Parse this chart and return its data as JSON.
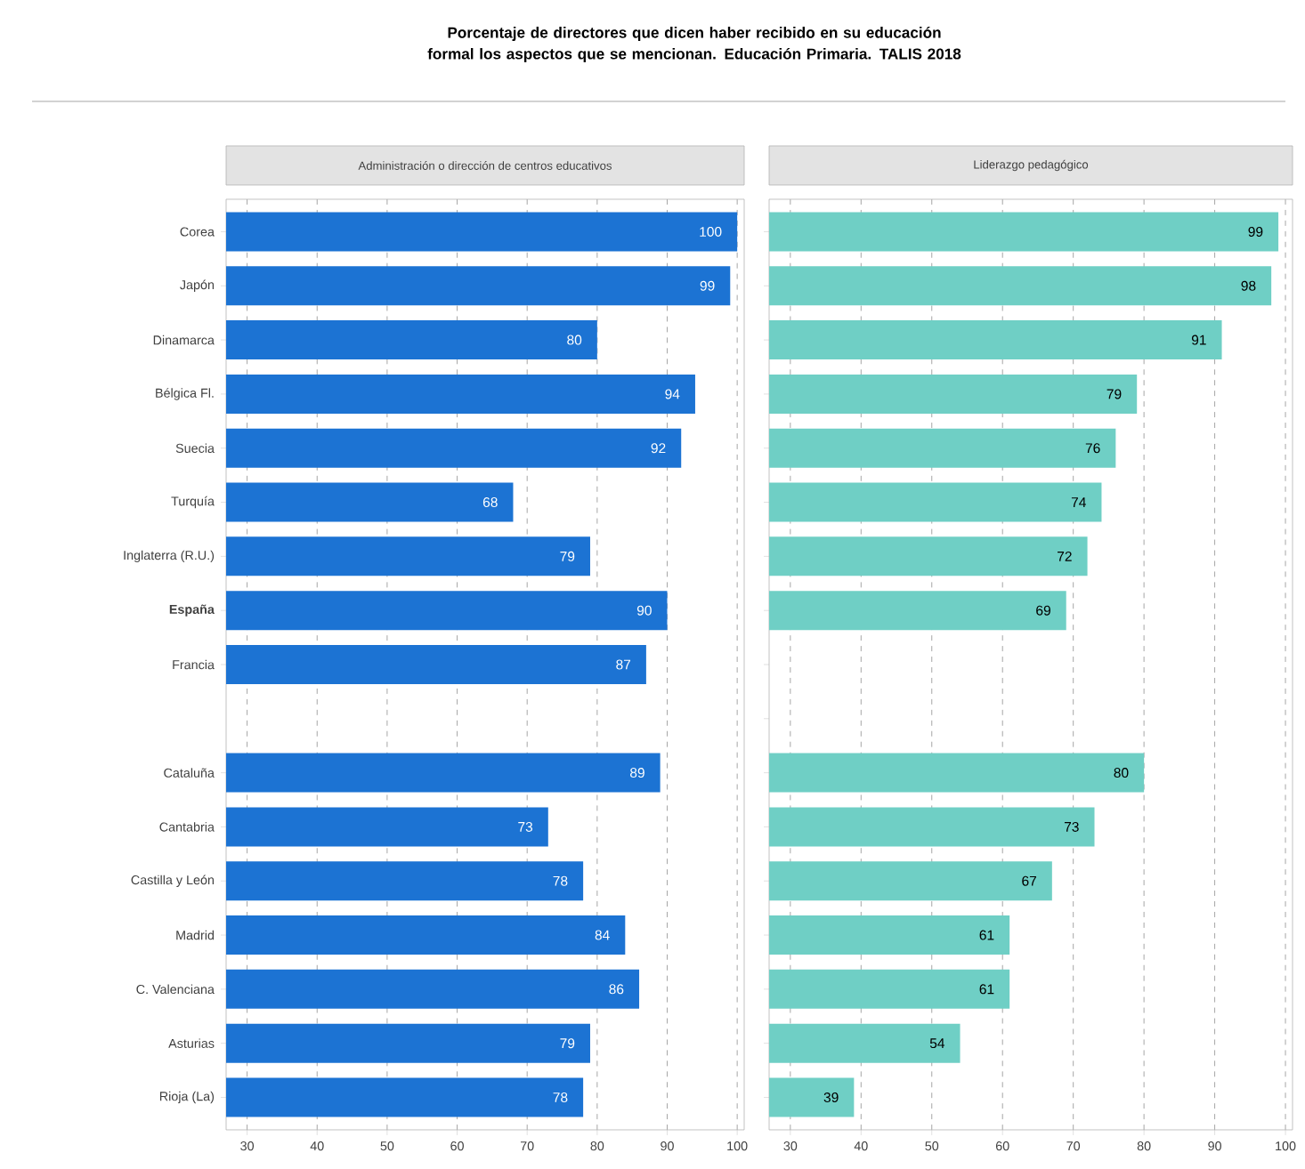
{
  "chart_data": [
    {
      "type": "bar",
      "orientation": "horizontal",
      "title": "Porcentaje de directores que dicen haber recibido en su educación formal los aspectos que se mencionan. Educación Primaria. TALIS 2018",
      "subtitle": "Administración o dirección de centros educativos",
      "categories": [
        "Corea",
        "Japón",
        "Dinamarca",
        "Bélgica Fl.",
        "Suecia",
        "Turquía",
        "Inglaterra (R.U.)",
        "**España**",
        "Francia",
        null,
        "Cataluña",
        "Cantabria",
        "Castilla y León",
        "Madrid",
        "C. Valenciana",
        "Asturias",
        "Rioja (La)"
      ],
      "values": [
        100,
        99,
        80,
        94,
        92,
        68,
        79,
        90,
        87,
        null,
        89,
        73,
        78,
        84,
        86,
        79,
        78
      ],
      "color": "#1c73d3",
      "data_labels": true,
      "xlim": [
        27,
        101
      ],
      "xticks": [
        30,
        40,
        50,
        60,
        70,
        80,
        90,
        100
      ],
      "grid": "x"
    },
    {
      "type": "bar",
      "orientation": "horizontal",
      "subtitle": "Liderazgo pedagógico",
      "categories": [
        null,
        null,
        null,
        null,
        null,
        null,
        null,
        null,
        null,
        null,
        null,
        null,
        null,
        null,
        null,
        null,
        null
      ],
      "values": [
        99,
        98,
        91,
        79,
        76,
        74,
        72,
        69,
        null,
        null,
        80,
        73,
        67,
        61,
        61,
        54,
        39
      ],
      "color": "#6fcfc5",
      "data_labels": true,
      "xlim": [
        27,
        101
      ],
      "xticks": [
        30,
        40,
        50,
        60,
        70,
        80,
        90,
        100
      ],
      "grid": "x",
      "tick_labels": "x"
    }
  ]
}
